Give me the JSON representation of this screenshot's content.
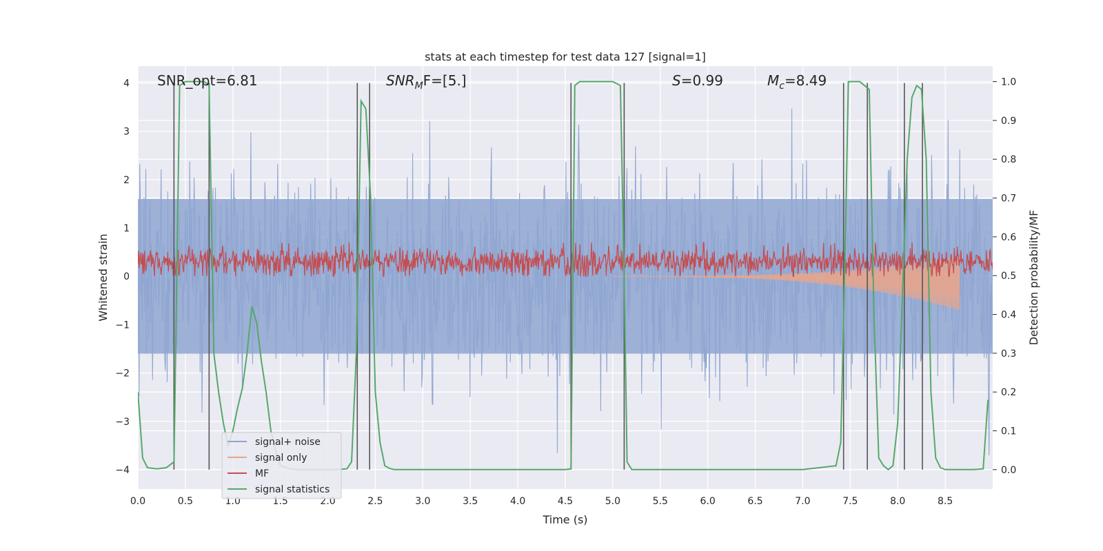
{
  "chart_data": {
    "type": "line",
    "title": "stats at each timestep for test data 127 [signal=1]",
    "xlabel": "Time (s)",
    "ylabel": "Whitened strain",
    "y2label": "Detection probability/MF",
    "xlim": [
      0,
      9.0
    ],
    "ylim": [
      -4.4,
      4.35
    ],
    "y2lim": [
      -0.05,
      1.04
    ],
    "xticks": [
      "0.0",
      "0.5",
      "1.0",
      "1.5",
      "2.0",
      "2.5",
      "3.0",
      "3.5",
      "4.0",
      "4.5",
      "5.0",
      "5.5",
      "6.0",
      "6.5",
      "7.0",
      "7.5",
      "8.0",
      "8.5"
    ],
    "yticks": [
      "4",
      "3",
      "2",
      "1",
      "0",
      "−1",
      "−2",
      "−3",
      "−4"
    ],
    "y2ticks": [
      "1.0",
      "0.9",
      "0.8",
      "0.7",
      "0.6",
      "0.5",
      "0.4",
      "0.3",
      "0.2",
      "0.1",
      "0.0"
    ],
    "grid": true,
    "legend_position": "lower-left",
    "annotations": {
      "snr_opt": "SNR_opt=6.81",
      "snr_mf_main": "SNR",
      "snr_mf_sub": "M",
      "snr_mf_rest": "F=[5.]",
      "s_italic": "S",
      "s_rest": "=0.99",
      "mc_main": "M",
      "mc_sub": "c",
      "mc_rest": "=8.49"
    },
    "series": [
      {
        "name": "signal+ noise",
        "color": "#8fa6d1",
        "description_kind": "noise-band",
        "x_range": [
          0,
          9.0
        ],
        "typical_envelope": [
          -1.6,
          1.6
        ],
        "peak_envelope": [
          -3.7,
          3.7
        ]
      },
      {
        "name": "signal only",
        "color": "#e8a58c",
        "description_kind": "chirp",
        "x_start": 5.0,
        "x_end": 8.65,
        "envelope_at_end": [
          -0.7,
          0.4
        ]
      },
      {
        "name": "MF",
        "color": "#c44e52",
        "description_kind": "matched-filter band",
        "typical_range": [
          0.0,
          0.7
        ],
        "max_value": 1.0
      },
      {
        "name": "signal statistics",
        "color": "#55a868",
        "axis": "right",
        "x": [
          0.0,
          0.05,
          0.1,
          0.2,
          0.3,
          0.38,
          0.44,
          0.5,
          0.6,
          0.7,
          0.75,
          0.8,
          0.85,
          0.9,
          0.95,
          1.0,
          1.05,
          1.1,
          1.15,
          1.2,
          1.25,
          1.3,
          1.35,
          1.4,
          1.45,
          1.5,
          1.6,
          1.7,
          1.8,
          1.9,
          2.0,
          2.1,
          2.2,
          2.25,
          2.3,
          2.35,
          2.4,
          2.45,
          2.5,
          2.55,
          2.6,
          2.65,
          2.7,
          2.8,
          3.0,
          3.5,
          4.0,
          4.5,
          4.56,
          4.6,
          4.65,
          4.7,
          5.0,
          5.08,
          5.12,
          5.15,
          5.2,
          5.25,
          5.3,
          6.0,
          7.0,
          7.35,
          7.4,
          7.45,
          7.48,
          7.55,
          7.6,
          7.65,
          7.7,
          7.75,
          7.8,
          7.85,
          7.9,
          7.95,
          8.0,
          8.05,
          8.1,
          8.15,
          8.2,
          8.25,
          8.3,
          8.35,
          8.4,
          8.45,
          8.5,
          8.6,
          8.7,
          8.8,
          8.9,
          8.95
        ],
        "y": [
          0.2,
          0.03,
          0.005,
          0.002,
          0.005,
          0.02,
          0.99,
          1.0,
          1.0,
          1.0,
          0.99,
          0.3,
          0.2,
          0.12,
          0.06,
          0.1,
          0.16,
          0.21,
          0.3,
          0.42,
          0.38,
          0.28,
          0.2,
          0.1,
          0.05,
          0.01,
          0.002,
          0.0,
          0.0,
          0.0,
          0.0,
          0.0,
          0.002,
          0.02,
          0.3,
          0.95,
          0.93,
          0.7,
          0.2,
          0.07,
          0.01,
          0.003,
          0.0,
          0.0,
          0.0,
          0.0,
          0.0,
          0.0,
          0.002,
          0.99,
          1.0,
          1.0,
          1.0,
          0.99,
          0.5,
          0.02,
          0.0,
          0.0,
          0.0,
          0.0,
          0.0,
          0.01,
          0.07,
          0.6,
          1.0,
          1.0,
          1.0,
          0.99,
          0.98,
          0.4,
          0.03,
          0.01,
          0.0,
          0.01,
          0.12,
          0.45,
          0.8,
          0.96,
          0.99,
          0.98,
          0.8,
          0.2,
          0.03,
          0.005,
          0.0,
          0.0,
          0.0,
          0.0,
          0.002,
          0.18
        ]
      }
    ],
    "vertical_lines": [
      0.38,
      0.75,
      2.31,
      2.44,
      4.56,
      5.12,
      7.43,
      7.68,
      8.07,
      8.26
    ]
  }
}
